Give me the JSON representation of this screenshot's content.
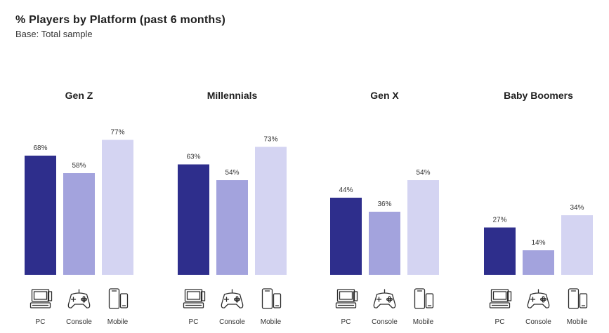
{
  "title": "% Players by Platform (past 6 months)",
  "subtitle": "Base: Total sample",
  "chart_data": {
    "type": "bar",
    "unit": "%",
    "categories": [
      "PC",
      "Console",
      "Mobile"
    ],
    "category_icons": [
      "pc-icon",
      "console-icon",
      "mobile-icon"
    ],
    "groups": [
      {
        "name": "Gen Z",
        "values": [
          68,
          58,
          77
        ]
      },
      {
        "name": "Millennials",
        "values": [
          63,
          54,
          73
        ]
      },
      {
        "name": "Gen X",
        "values": [
          44,
          36,
          54
        ]
      },
      {
        "name": "Baby Boomers",
        "values": [
          27,
          14,
          34
        ]
      }
    ],
    "colors": [
      "#2e2e8c",
      "#a3a3dd",
      "#d4d4f2"
    ],
    "ylim": [
      0,
      100
    ],
    "grid": false,
    "legend": "none"
  }
}
